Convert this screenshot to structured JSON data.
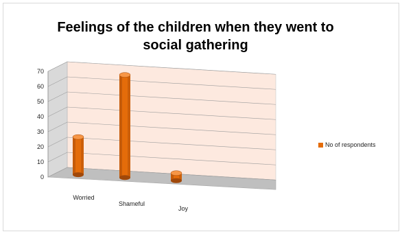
{
  "chart_data": {
    "type": "bar",
    "title_line1": "Feelings of the children when they went to",
    "title_line2": "social gathering",
    "categories": [
      "Worried",
      "Shameful",
      "Joy"
    ],
    "series": [
      {
        "name": "No of respondents",
        "values": [
          25,
          68,
          5
        ]
      }
    ],
    "yticks": [
      0,
      10,
      20,
      30,
      40,
      50,
      60,
      70
    ],
    "ylim": [
      0,
      70
    ],
    "grid": true,
    "legend_position": "right",
    "colors": {
      "bar": "#e46c0a",
      "bar_dark": "#a0480a",
      "bar_light": "#f79646",
      "wall": "#fde9df",
      "floor": "#bfbfbf"
    }
  }
}
